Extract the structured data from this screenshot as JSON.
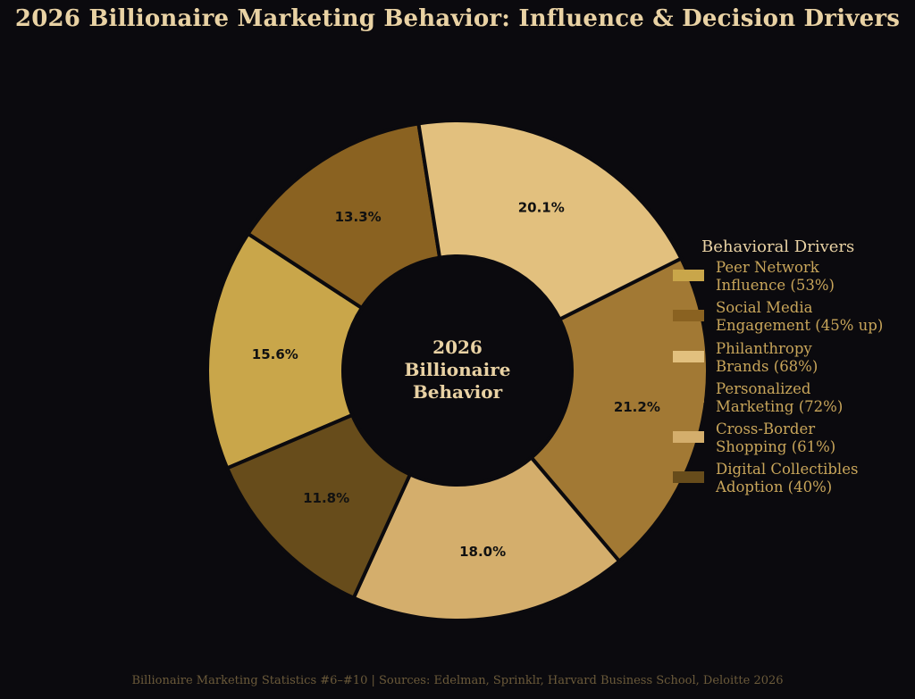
{
  "chart_data": {
    "type": "pie",
    "title": "2026 Billionaire Marketing Behavior: Influence & Decision Drivers",
    "center_label": [
      "2026",
      "Billionaire",
      "Behavior"
    ],
    "categories": [
      "Peer Network Influence (53%)",
      "Social Media Engagement (45% up)",
      "Philanthropy Brands (68%)",
      "Personalized Marketing (72%)",
      "Cross-Border Shopping (61%)",
      "Digital Collectibles Adoption (40%)"
    ],
    "values": [
      15.6,
      13.3,
      20.1,
      21.2,
      18.0,
      11.8
    ],
    "value_labels": [
      "15.6%",
      "13.3%",
      "20.1%",
      "21.2%",
      "18.0%",
      "11.8%"
    ],
    "colors": [
      "#c9a64a",
      "#8a6221",
      "#e2c07e",
      "#a27934",
      "#d4ae6c",
      "#674c1b"
    ],
    "legend": {
      "title": "Behavioral Drivers",
      "placement": "right",
      "entries": [
        {
          "lines": [
            "Peer Network",
            "Influence (53%)"
          ],
          "color": "#c9a64a"
        },
        {
          "lines": [
            "Social Media",
            "Engagement (45% up)"
          ],
          "color": "#8a6221"
        },
        {
          "lines": [
            "Philanthropy",
            "Brands (68%)"
          ],
          "color": "#e2c07e"
        },
        {
          "lines": [
            "Personalized",
            "Marketing (72%)"
          ],
          "color": "#a27934"
        },
        {
          "lines": [
            "Cross-Border",
            "Shopping (61%)"
          ],
          "color": "#d4ae6c"
        },
        {
          "lines": [
            "Digital Collectibles",
            "Adoption (40%)"
          ],
          "color": "#674c1b"
        }
      ]
    }
  },
  "footer": "Billionaire Marketing Statistics #6–#10 | Sources: Edelman, Sprinklr, Harvard Business School, Deloitte 2026",
  "colors": {
    "background": "#0b0a0e",
    "title": "#e9d2a4",
    "legend_text": "#c8a55a",
    "footer": "#6b5a3a",
    "slice_edge": "#0b0a0e",
    "value_label": "#111111"
  }
}
